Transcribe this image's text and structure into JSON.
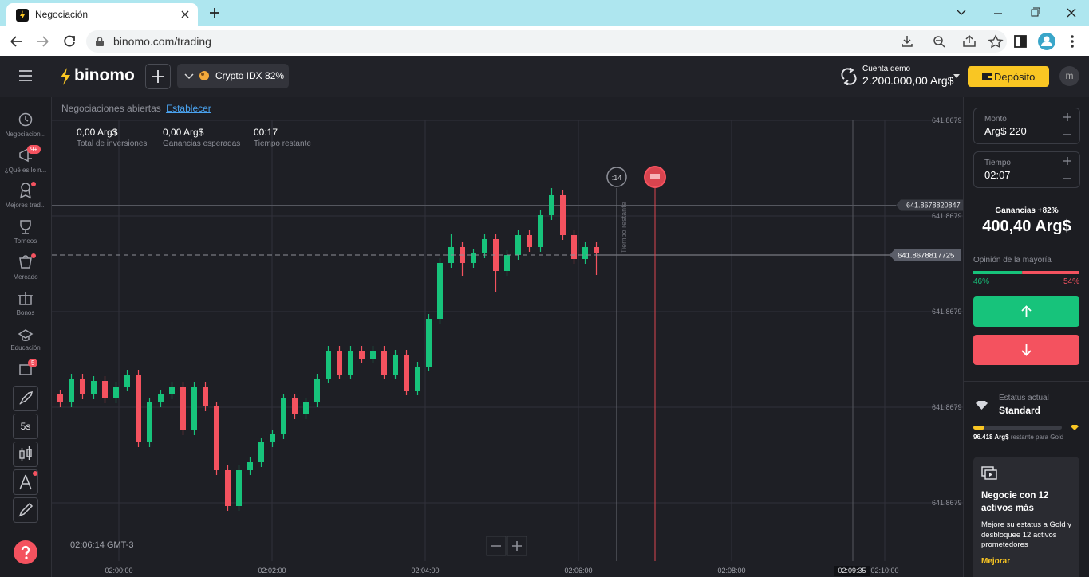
{
  "browser": {
    "tab_title": "Negociación",
    "url": "binomo.com/trading"
  },
  "header": {
    "logo": "binomo",
    "asset": "Crypto IDX 82%",
    "account_label": "Cuenta demo",
    "balance": "2.200.000,00 Arg$",
    "deposit": "Depósito",
    "avatar": "m"
  },
  "sidebar": {
    "items": [
      {
        "label": "Negociacion..."
      },
      {
        "label": "¿Qué es lo n...",
        "badge": "9+"
      },
      {
        "label": "Mejores trad..."
      },
      {
        "label": "Torneos"
      },
      {
        "label": "Mercado"
      },
      {
        "label": "Bonos"
      },
      {
        "label": "Educación"
      },
      {
        "badge": "5"
      }
    ],
    "timeframe": "5s"
  },
  "trades_bar": {
    "label": "Negociaciones abiertas",
    "link": "Establecer"
  },
  "stats": [
    {
      "value": "0,00 Arg$",
      "label": "Total de inversiones"
    },
    {
      "value": "0,00 Arg$",
      "label": "Ganancias esperadas"
    },
    {
      "value": "00:17",
      "label": "Tiempo restante"
    }
  ],
  "chart_data": {
    "type": "candlestick",
    "ylim": [
      641.8678798525,
      641.8678827625
    ],
    "yticks": [
      {
        "value": 641.8678826175,
        "label": "641.8679"
      },
      {
        "value": 641.8678820175,
        "label": "641.8679"
      },
      {
        "value": 641.8678814175,
        "label": "641.8679"
      },
      {
        "value": 641.8678808175,
        "label": "641.8679"
      },
      {
        "value": 641.8678802175,
        "label": "641.8679"
      }
    ],
    "xticks": [
      "02:00:00",
      "02:02:00",
      "02:04:00",
      "02:06:00",
      "02:08:00",
      "02:10:00"
    ],
    "up_color": "#17c37b",
    "down_color": "#f4525f",
    "grid": true,
    "open": [
      641.8678808975,
      641.8678808475,
      641.8678809975,
      641.8678808975,
      641.8678809825,
      641.8678808725,
      641.8678809475,
      641.8678810225,
      641.8678805975,
      641.8678808475,
      641.8678808975,
      641.8678809475,
      641.8678806725,
      641.8678809475,
      641.8678808225,
      641.8678804225,
      641.8678801975,
      641.8678804225,
      641.8678804725,
      641.8678805975,
      641.8678806475,
      641.8678808725,
      641.8678807725,
      641.8678808475,
      641.8678809975,
      641.8678811725,
      641.8678810225,
      641.8678811725,
      641.8678811225,
      641.8678811725,
      641.8678810225,
      641.8678811475,
      641.8678809225,
      641.8678810725,
      641.8678813725,
      641.8678817225,
      641.8678818225,
      641.8678817225,
      641.8678817825,
      641.8678818725,
      641.8678816725,
      641.8678817725,
      641.8678818975,
      641.8678818225,
      641.8678820225,
      641.8678821475,
      641.8678818975,
      641.8678817475,
      641.8678818225
    ],
    "high": [
      641.8678809275,
      641.8678810275,
      641.8678810275,
      641.8678810125,
      641.8678810125,
      641.8678809775,
      641.8678810525,
      641.8678810525,
      641.8678808775,
      641.8678809275,
      641.8678809775,
      641.8678809775,
      641.8678809775,
      641.8678809775,
      641.8678808525,
      641.8678804525,
      641.8678804525,
      641.8678805025,
      641.8678806275,
      641.8678806775,
      641.8678809025,
      641.8678809025,
      641.8678808775,
      641.8678810275,
      641.8678812025,
      641.8678812025,
      641.8678812025,
      641.8678812025,
      641.8678812025,
      641.8678812025,
      641.8678811775,
      641.8678811775,
      641.8678811025,
      641.8678814025,
      641.8678817525,
      641.8678819025,
      641.8678818525,
      641.8678818125,
      641.8678819025,
      641.8678819025,
      641.8678818025,
      641.8678819275,
      641.8678819275,
      641.8678820525,
      641.8678821925,
      641.8678821775,
      641.8678819275,
      641.8678818525,
      641.8678818525
    ],
    "low": [
      641.8678808175,
      641.8678808175,
      641.8678808675,
      641.8678808675,
      641.8678808425,
      641.8678808425,
      641.8678809175,
      641.8678805675,
      641.8678805675,
      641.8678808175,
      641.8678808675,
      641.8678806425,
      641.8678806425,
      641.8678807925,
      641.8678803925,
      641.8678801675,
      641.8678801675,
      641.8678803925,
      641.8678804425,
      641.8678805675,
      641.8678806175,
      641.8678807425,
      641.8678807425,
      641.8678808175,
      641.8678809675,
      641.8678809925,
      641.8678809925,
      641.8678810925,
      641.8678810925,
      641.8678809925,
      641.8678809925,
      641.8678808925,
      641.8678808925,
      641.8678810425,
      641.8678813425,
      641.8678816925,
      641.8678816425,
      641.8678816925,
      641.8678817525,
      641.8678815425,
      641.8678816425,
      641.8678817425,
      641.8678817925,
      641.8678817925,
      641.8678819925,
      641.8678818675,
      641.8678817175,
      641.8678817175,
      641.8678816475
    ],
    "close": [
      641.8678808475,
      641.8678809975,
      641.8678808975,
      641.8678809825,
      641.8678808725,
      641.8678809475,
      641.8678810225,
      641.8678805975,
      641.8678808475,
      641.8678808975,
      641.8678809475,
      641.8678806725,
      641.8678809475,
      641.8678808225,
      641.8678804225,
      641.8678801975,
      641.8678804225,
      641.8678804725,
      641.8678805975,
      641.8678806475,
      641.8678808725,
      641.8678807725,
      641.8678808475,
      641.8678809975,
      641.8678811725,
      641.8678810225,
      641.8678811725,
      641.8678811225,
      641.8678811725,
      641.8678810225,
      641.8678811475,
      641.8678809225,
      641.8678810725,
      641.8678813725,
      641.8678817225,
      641.8678818225,
      641.8678817225,
      641.8678817825,
      641.8678818725,
      641.8678816725,
      641.8678817725,
      641.8678818975,
      641.8678818225,
      641.8678820225,
      641.8678821475,
      641.8678818975,
      641.8678817475,
      641.8678818225,
      641.8678817825
    ],
    "level_price": 641.8678820847,
    "current_price": 641.8678817725,
    "countdown": ":14",
    "expiry_label": "Tiempo restante",
    "clock": "02:06:14 GMT-3",
    "current_time": "02:09:35"
  },
  "trade_panel": {
    "amount": {
      "label": "Monto",
      "value": "Arg$ 220"
    },
    "time": {
      "label": "Tiempo",
      "value": "02:07"
    },
    "profit": {
      "label": "Ganancias +82%",
      "value": "400,40 Arg$"
    },
    "opinion": {
      "label": "Opinión de la mayoría",
      "values": [
        46,
        54
      ],
      "value_labels": [
        "46%",
        "54%"
      ]
    },
    "status": {
      "label": "Estatus actual",
      "level": "Standard",
      "remaining": "96.418 Arg$",
      "remaining_note": "restante para Gold"
    },
    "promo": {
      "title": "Negocie con 12 activos más",
      "text": "Mejore su estatus a Gold y desbloquee 12 activos prometedores",
      "link": "Mejorar"
    }
  }
}
